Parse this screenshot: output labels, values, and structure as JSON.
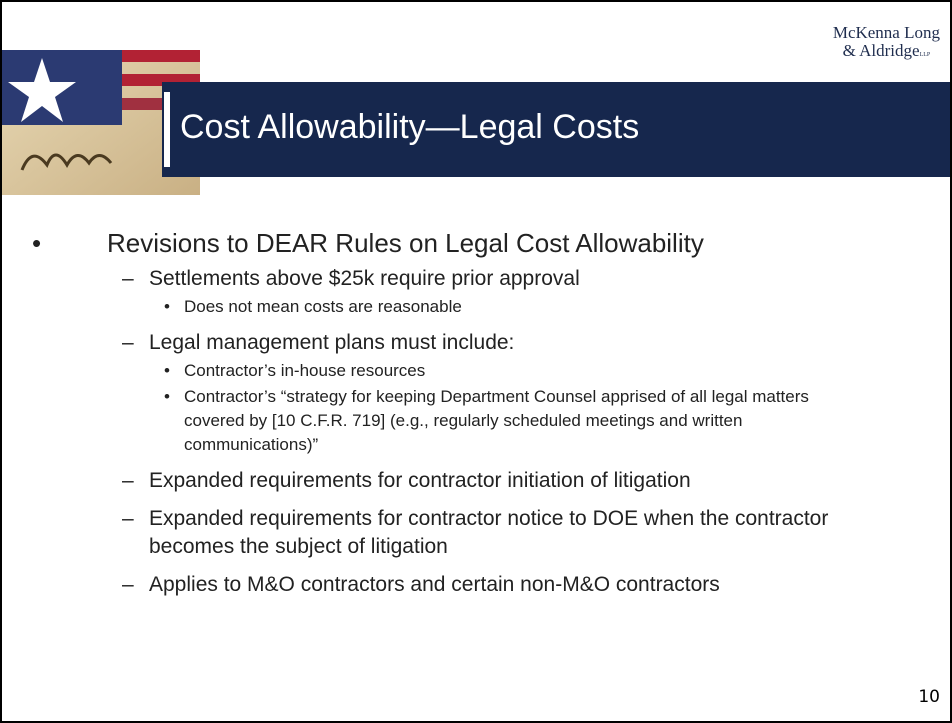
{
  "logo": {
    "line1": "McKenna Long",
    "line2": "& Aldridge",
    "suffix": "LLP"
  },
  "title": "Cost Allowability—Legal Costs",
  "content": {
    "text": "Revisions to DEAR Rules on Legal Cost Allowability",
    "items": [
      {
        "text": "Settlements above $25k require prior approval",
        "items": [
          "Does not mean costs are reasonable"
        ]
      },
      {
        "text": "Legal management plans must include:",
        "items": [
          "Contractor’s in-house resources",
          "Contractor’s “strategy for keeping Department Counsel apprised of all legal matters covered by [10 C.F.R. 719] (e.g., regularly scheduled meetings and written communications)”"
        ]
      },
      {
        "text": "Expanded requirements for contractor initiation of litigation"
      },
      {
        "text": "Expanded requirements for contractor notice to DOE when the contractor becomes the subject of litigation"
      },
      {
        "text": "Applies to M&O contractors and certain non-M&O contractors"
      }
    ]
  },
  "page_number": "10"
}
